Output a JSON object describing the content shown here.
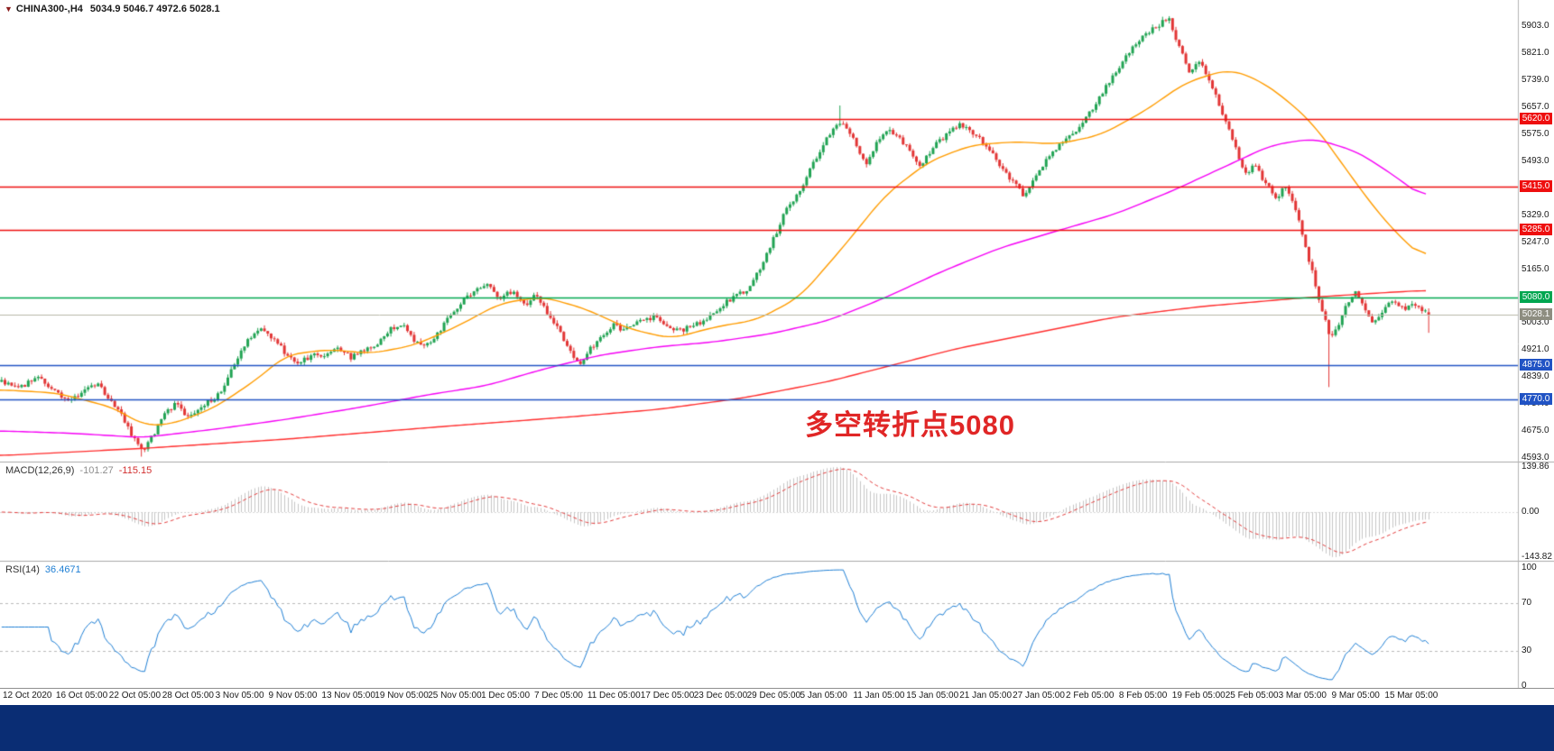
{
  "header": {
    "marker": "▼",
    "symbol": "CHINA300-,H4",
    "ohlc": "5034.9 5046.7 4972.6 5028.1"
  },
  "panes": {
    "macd": {
      "label": "MACD(12,26,9)",
      "value": "-101.27",
      "signal": "-115.15"
    },
    "rsi": {
      "label": "RSI(14)",
      "value": "36.4671"
    }
  },
  "annotation": {
    "text": "多空转折点5080",
    "color": "#e02626"
  },
  "levels": [
    {
      "label": "5620.0",
      "price": 5620.0,
      "color": "#ee0f0f"
    },
    {
      "label": "5415.0",
      "price": 5415.0,
      "color": "#ee0f0f"
    },
    {
      "label": "5285.0",
      "price": 5285.0,
      "color": "#ee0f0f"
    },
    {
      "label": "5080.0",
      "price": 5080.0,
      "color": "#00a650"
    },
    {
      "label": "4875.0",
      "price": 4875.0,
      "color": "#2153c4"
    },
    {
      "label": "4770.0",
      "price": 4770.0,
      "color": "#2153c4"
    }
  ],
  "current_price": {
    "label": "5028.1",
    "value": 5028.1,
    "badge_color": "#8d8d80",
    "line_color": "#b9b9a8"
  },
  "chart_data": {
    "type": "candlestick",
    "symbol": "CHINA300-",
    "timeframe": "H4",
    "bars": 430,
    "ylim": [
      4582,
      5982
    ],
    "colors": {
      "up": "#21a353",
      "down": "#e23535"
    },
    "price_ticks": [
      "5903.0",
      "5821.0",
      "5739.0",
      "5657.0",
      "5575.0",
      "5493.0",
      "5411.0",
      "5329.0",
      "5247.0",
      "5165.0",
      "5083.0",
      "5003.0",
      "4921.0",
      "4839.0",
      "4757.0",
      "4675.0",
      "4593.0"
    ],
    "time_labels": [
      "12 Oct 2020",
      "16 Oct 05:00",
      "22 Oct 05:00",
      "28 Oct 05:00",
      "3 Nov 05:00",
      "9 Nov 05:00",
      "13 Nov 05:00",
      "19 Nov 05:00",
      "25 Nov 05:00",
      "1 Dec 05:00",
      "7 Dec 05:00",
      "11 Dec 05:00",
      "17 Dec 05:00",
      "23 Dec 05:00",
      "29 Dec 05:00",
      "5 Jan 05:00",
      "11 Jan 05:00",
      "15 Jan 05:00",
      "21 Jan 05:00",
      "27 Jan 05:00",
      "2 Feb 05:00",
      "8 Feb 05:00",
      "19 Feb 05:00",
      "25 Feb 05:00",
      "3 Mar 05:00",
      "9 Mar 05:00",
      "15 Mar 05:00"
    ],
    "last_candle": {
      "open": 5034.9,
      "high": 5046.7,
      "low": 4972.6,
      "close": 5028.1
    },
    "pins": [
      {
        "f": 0.818,
        "type": "high",
        "value": 5933
      },
      {
        "f": 0.099,
        "type": "low",
        "value": 4597
      },
      {
        "f": 0.588,
        "type": "high",
        "value": 5662
      },
      {
        "f": 0.931,
        "type": "low",
        "value": 4808
      }
    ],
    "price_anchors": [
      [
        0.0,
        4828
      ],
      [
        0.012,
        4805
      ],
      [
        0.025,
        4840
      ],
      [
        0.037,
        4795
      ],
      [
        0.048,
        4765
      ],
      [
        0.058,
        4800
      ],
      [
        0.068,
        4815
      ],
      [
        0.077,
        4765
      ],
      [
        0.085,
        4715
      ],
      [
        0.093,
        4650
      ],
      [
        0.099,
        4610
      ],
      [
        0.106,
        4660
      ],
      [
        0.113,
        4725
      ],
      [
        0.122,
        4755
      ],
      [
        0.13,
        4720
      ],
      [
        0.14,
        4750
      ],
      [
        0.148,
        4770
      ],
      [
        0.155,
        4800
      ],
      [
        0.163,
        4880
      ],
      [
        0.172,
        4950
      ],
      [
        0.181,
        4988
      ],
      [
        0.188,
        4968
      ],
      [
        0.197,
        4920
      ],
      [
        0.207,
        4882
      ],
      [
        0.217,
        4900
      ],
      [
        0.226,
        4908
      ],
      [
        0.236,
        4932
      ],
      [
        0.245,
        4898
      ],
      [
        0.255,
        4925
      ],
      [
        0.263,
        4942
      ],
      [
        0.272,
        4985
      ],
      [
        0.28,
        5000
      ],
      [
        0.288,
        4952
      ],
      [
        0.295,
        4928
      ],
      [
        0.305,
        4968
      ],
      [
        0.315,
        5030
      ],
      [
        0.325,
        5075
      ],
      [
        0.333,
        5105
      ],
      [
        0.34,
        5118
      ],
      [
        0.35,
        5078
      ],
      [
        0.358,
        5102
      ],
      [
        0.367,
        5058
      ],
      [
        0.374,
        5088
      ],
      [
        0.383,
        5030
      ],
      [
        0.392,
        4968
      ],
      [
        0.4,
        4905
      ],
      [
        0.406,
        4882
      ],
      [
        0.411,
        4918
      ],
      [
        0.42,
        4962
      ],
      [
        0.429,
        4995
      ],
      [
        0.437,
        4980
      ],
      [
        0.448,
        5008
      ],
      [
        0.457,
        5022
      ],
      [
        0.465,
        4995
      ],
      [
        0.476,
        4982
      ],
      [
        0.485,
        4992
      ],
      [
        0.494,
        5018
      ],
      [
        0.503,
        5048
      ],
      [
        0.512,
        5078
      ],
      [
        0.523,
        5105
      ],
      [
        0.532,
        5172
      ],
      [
        0.541,
        5258
      ],
      [
        0.55,
        5348
      ],
      [
        0.56,
        5408
      ],
      [
        0.569,
        5488
      ],
      [
        0.578,
        5562
      ],
      [
        0.588,
        5612
      ],
      [
        0.597,
        5558
      ],
      [
        0.605,
        5482
      ],
      [
        0.614,
        5552
      ],
      [
        0.623,
        5588
      ],
      [
        0.634,
        5538
      ],
      [
        0.643,
        5478
      ],
      [
        0.652,
        5532
      ],
      [
        0.662,
        5572
      ],
      [
        0.671,
        5602
      ],
      [
        0.68,
        5578
      ],
      [
        0.69,
        5542
      ],
      [
        0.699,
        5488
      ],
      [
        0.708,
        5432
      ],
      [
        0.717,
        5385
      ],
      [
        0.726,
        5452
      ],
      [
        0.736,
        5522
      ],
      [
        0.745,
        5558
      ],
      [
        0.754,
        5592
      ],
      [
        0.763,
        5645
      ],
      [
        0.772,
        5705
      ],
      [
        0.782,
        5772
      ],
      [
        0.79,
        5825
      ],
      [
        0.8,
        5872
      ],
      [
        0.81,
        5905
      ],
      [
        0.818,
        5928
      ],
      [
        0.825,
        5838
      ],
      [
        0.832,
        5768
      ],
      [
        0.84,
        5802
      ],
      [
        0.848,
        5718
      ],
      [
        0.857,
        5622
      ],
      [
        0.864,
        5542
      ],
      [
        0.871,
        5452
      ],
      [
        0.878,
        5482
      ],
      [
        0.886,
        5422
      ],
      [
        0.894,
        5382
      ],
      [
        0.9,
        5422
      ],
      [
        0.906,
        5352
      ],
      [
        0.912,
        5262
      ],
      [
        0.918,
        5162
      ],
      [
        0.924,
        5062
      ],
      [
        0.931,
        4962
      ],
      [
        0.937,
        4992
      ],
      [
        0.943,
        5062
      ],
      [
        0.949,
        5092
      ],
      [
        0.955,
        5052
      ],
      [
        0.961,
        5002
      ],
      [
        0.968,
        5042
      ],
      [
        0.975,
        5072
      ],
      [
        0.983,
        5048
      ],
      [
        0.991,
        5058
      ],
      [
        1.0,
        5028
      ]
    ],
    "overlays": [
      {
        "name": "ma-fast-orange",
        "color": "#ff9c00",
        "anchors": [
          [
            0.0,
            4800
          ],
          [
            0.04,
            4790
          ],
          [
            0.08,
            4745
          ],
          [
            0.1,
            4692
          ],
          [
            0.12,
            4695
          ],
          [
            0.15,
            4745
          ],
          [
            0.18,
            4832
          ],
          [
            0.2,
            4905
          ],
          [
            0.23,
            4922
          ],
          [
            0.26,
            4910
          ],
          [
            0.29,
            4935
          ],
          [
            0.32,
            4992
          ],
          [
            0.35,
            5062
          ],
          [
            0.38,
            5082
          ],
          [
            0.41,
            5045
          ],
          [
            0.44,
            4985
          ],
          [
            0.47,
            4955
          ],
          [
            0.5,
            4990
          ],
          [
            0.53,
            5012
          ],
          [
            0.56,
            5082
          ],
          [
            0.59,
            5232
          ],
          [
            0.62,
            5392
          ],
          [
            0.65,
            5492
          ],
          [
            0.68,
            5542
          ],
          [
            0.71,
            5552
          ],
          [
            0.74,
            5545
          ],
          [
            0.77,
            5572
          ],
          [
            0.8,
            5642
          ],
          [
            0.83,
            5732
          ],
          [
            0.86,
            5772
          ],
          [
            0.88,
            5742
          ],
          [
            0.9,
            5682
          ],
          [
            0.92,
            5602
          ],
          [
            0.94,
            5482
          ],
          [
            0.96,
            5362
          ],
          [
            0.98,
            5262
          ],
          [
            1.0,
            5188
          ]
        ]
      },
      {
        "name": "ma-mid-magenta",
        "color": "#f500f5",
        "anchors": [
          [
            0.0,
            4675
          ],
          [
            0.05,
            4668
          ],
          [
            0.1,
            4655
          ],
          [
            0.15,
            4680
          ],
          [
            0.2,
            4710
          ],
          [
            0.25,
            4745
          ],
          [
            0.3,
            4785
          ],
          [
            0.34,
            4812
          ],
          [
            0.38,
            4862
          ],
          [
            0.42,
            4905
          ],
          [
            0.46,
            4930
          ],
          [
            0.5,
            4945
          ],
          [
            0.54,
            4970
          ],
          [
            0.58,
            5010
          ],
          [
            0.62,
            5080
          ],
          [
            0.66,
            5160
          ],
          [
            0.7,
            5230
          ],
          [
            0.74,
            5282
          ],
          [
            0.78,
            5332
          ],
          [
            0.82,
            5402
          ],
          [
            0.86,
            5482
          ],
          [
            0.89,
            5542
          ],
          [
            0.92,
            5562
          ],
          [
            0.95,
            5522
          ],
          [
            0.975,
            5452
          ],
          [
            1.0,
            5372
          ]
        ]
      },
      {
        "name": "ma-slow-red",
        "color": "#ff2d2d",
        "anchors": [
          [
            0.0,
            4600
          ],
          [
            0.1,
            4622
          ],
          [
            0.2,
            4650
          ],
          [
            0.3,
            4685
          ],
          [
            0.4,
            4718
          ],
          [
            0.46,
            4740
          ],
          [
            0.52,
            4775
          ],
          [
            0.58,
            4825
          ],
          [
            0.625,
            4875
          ],
          [
            0.67,
            4925
          ],
          [
            0.72,
            4968
          ],
          [
            0.78,
            5020
          ],
          [
            0.84,
            5052
          ],
          [
            0.91,
            5078
          ],
          [
            0.96,
            5092
          ],
          [
            1.0,
            5102
          ]
        ]
      }
    ],
    "indicators": [
      {
        "name": "MACD",
        "params": [
          12,
          26,
          9
        ],
        "main": -101.27,
        "signal": -115.15,
        "scale": [
          -143.82,
          139.86
        ],
        "ticks": [
          "139.86",
          "0.00",
          "-143.82"
        ],
        "hist_color": "#c6c6c6",
        "signal_color": "#e23b3b"
      },
      {
        "name": "RSI",
        "params": [
          14
        ],
        "value": 36.4671,
        "levels": [
          70,
          30
        ],
        "ticks": [
          "100",
          "70",
          "30",
          "0"
        ],
        "line_color": "#1f7fd4"
      }
    ]
  }
}
